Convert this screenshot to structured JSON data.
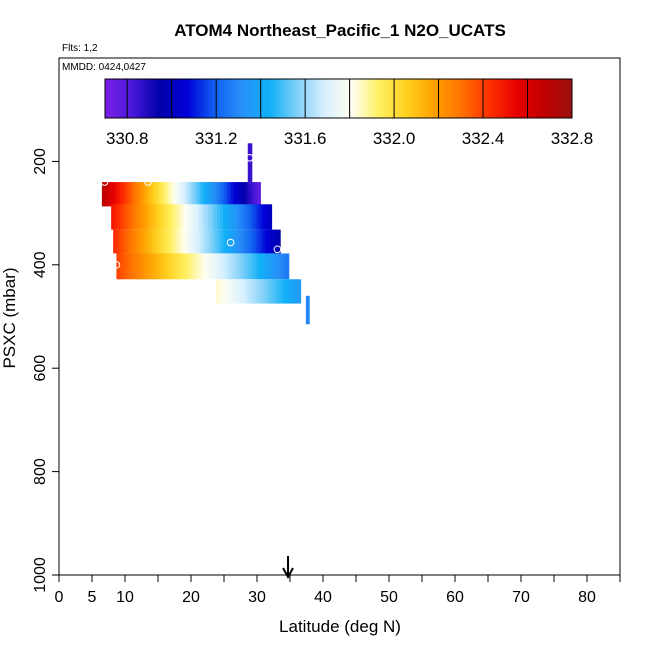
{
  "chart_data": {
    "type": "heatmap",
    "title": "ATOM4 Northeast_Pacific_1 N2O_UCATS",
    "subtitle_flights": "Flts: 1,2",
    "subtitle_dates": "MMDD: 0424,0427",
    "xlabel": "Latitude (deg N)",
    "ylabel": "PSXC (mbar)",
    "xlim": [
      0,
      85
    ],
    "ylim": [
      1000,
      0
    ],
    "x_ticks": [
      0,
      5,
      10,
      20,
      30,
      40,
      50,
      60,
      70,
      80
    ],
    "x_tick_labels": [
      "0",
      "5",
      "10",
      "20",
      "30",
      "40",
      "50",
      "60",
      "70",
      "80"
    ],
    "x_minor_ticks": [
      15,
      25,
      35,
      45,
      55,
      65,
      75,
      85
    ],
    "y_ticks": [
      200,
      400,
      600,
      800,
      1000
    ],
    "y_tick_labels": [
      "200",
      "400",
      "600",
      "800",
      "1000"
    ],
    "grid": false,
    "colorbar": {
      "min": 330.7,
      "max": 332.8,
      "placement": "top",
      "ticks": [
        330.8,
        331.2,
        331.6,
        332.0,
        332.4,
        332.8
      ],
      "tick_labels": [
        "330.8",
        "331.2",
        "331.6",
        "332.0",
        "332.4",
        "332.8"
      ],
      "colors": [
        "#7a1fe6",
        "#4a18d8",
        "#0000a8",
        "#0000d8",
        "#1060f0",
        "#2890f8",
        "#10b0f8",
        "#80d0f8",
        "#d8f0ff",
        "#fffff0",
        "#fff060",
        "#ffd020",
        "#ffa000",
        "#ff7000",
        "#ff3000",
        "#e80000",
        "#c00000",
        "#9a1010"
      ]
    },
    "marker": {
      "latitude": 34.7,
      "symbol": "down-arrow"
    },
    "bands": [
      {
        "p_top": 240,
        "p_bottom": 287,
        "lat_start": 6.5,
        "lat_end": 30.5,
        "value_start": 332.7,
        "value_end": 330.75
      },
      {
        "p_top": 283,
        "p_bottom": 332,
        "lat_start": 7.9,
        "lat_end": 32.2,
        "value_start": 332.5,
        "value_end": 331.0
      },
      {
        "p_top": 332,
        "p_bottom": 378,
        "lat_start": 8.2,
        "lat_end": 33.5,
        "value_start": 332.45,
        "value_end": 330.95
      },
      {
        "p_top": 378,
        "p_bottom": 428,
        "lat_start": 8.7,
        "lat_end": 34.8,
        "value_start": 332.4,
        "value_end": 331.25
      },
      {
        "p_top": 428,
        "p_bottom": 475,
        "lat_start": 23.8,
        "lat_end": 36.6,
        "value_start": 331.85,
        "value_end": 331.35
      },
      {
        "p_top": 165,
        "p_bottom": 245,
        "lat_start": 28.6,
        "lat_end": 29.2,
        "value_start": 330.85,
        "value_end": 330.85
      },
      {
        "p_top": 460,
        "p_bottom": 515,
        "lat_start": 37.4,
        "lat_end": 37.9,
        "value_start": 331.3,
        "value_end": 331.3
      }
    ],
    "points": [
      {
        "lat": 6.9,
        "p": 240
      },
      {
        "lat": 13.5,
        "p": 240
      },
      {
        "lat": 26.9,
        "p": 218
      },
      {
        "lat": 28.9,
        "p": 193
      },
      {
        "lat": 26.0,
        "p": 357
      },
      {
        "lat": 33.1,
        "p": 370
      },
      {
        "lat": 8.7,
        "p": 400
      }
    ]
  }
}
